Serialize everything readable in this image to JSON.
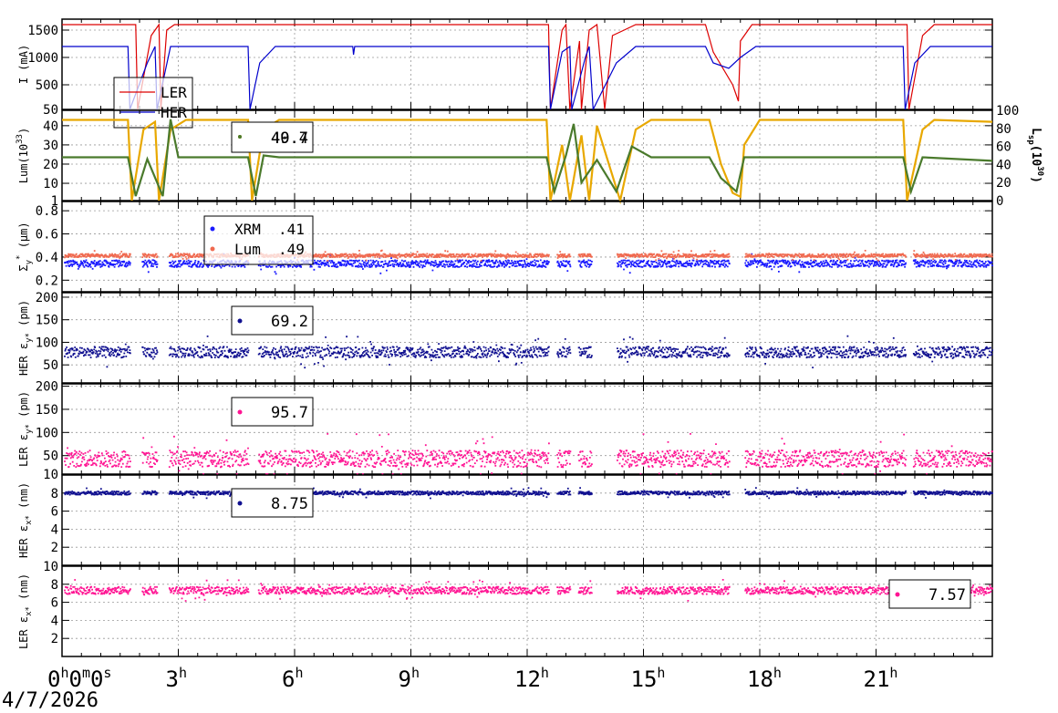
{
  "date": "4/7/2026",
  "x_axis": {
    "range_hours": [
      0,
      24
    ],
    "tick_hours": [
      0,
      3,
      6,
      9,
      12,
      15,
      18,
      21
    ],
    "tick_labels": [
      {
        "base": "0",
        "sup": "h",
        "rest": "0",
        "sup2": "m",
        "rest2": "0",
        "sup3": "s"
      },
      {
        "base": "3",
        "sup": "h"
      },
      {
        "base": "6",
        "sup": "h"
      },
      {
        "base": "9",
        "sup": "h"
      },
      {
        "base": "12",
        "sup": "h"
      },
      {
        "base": "15",
        "sup": "h"
      },
      {
        "base": "18",
        "sup": "h"
      },
      {
        "base": "21",
        "sup": "h"
      }
    ]
  },
  "colors": {
    "ler_current": "#dd0000",
    "her_current": "#0000cc",
    "lum": "#e8a800",
    "lsp": "#4a7a2c",
    "xrm": "#1a1aff",
    "lum_sigma": "#f06a50",
    "her_emit": "#101090",
    "ler_emit": "#ff1493"
  },
  "chart_data": [
    {
      "type": "line",
      "ylabel": "I (mA)",
      "yticks": [
        "500",
        "1000",
        "1500"
      ],
      "ylim": [
        50,
        1700
      ],
      "bottom_tick": "50",
      "legend": [
        {
          "name": "LER",
          "color": "#dd0000"
        },
        {
          "name": "HER",
          "color": "#0000cc"
        }
      ],
      "series": [
        {
          "name": "LER",
          "points": [
            [
              0,
              1600
            ],
            [
              1.9,
              1600
            ],
            [
              1.95,
              50
            ],
            [
              2.3,
              1400
            ],
            [
              2.5,
              1600
            ],
            [
              2.55,
              50
            ],
            [
              2.7,
              1500
            ],
            [
              2.9,
              1600
            ],
            [
              12.55,
              1600
            ],
            [
              12.6,
              50
            ],
            [
              12.9,
              1500
            ],
            [
              13.0,
              1600
            ],
            [
              13.1,
              50
            ],
            [
              13.35,
              1300
            ],
            [
              13.4,
              50
            ],
            [
              13.6,
              1500
            ],
            [
              13.8,
              1600
            ],
            [
              14.0,
              50
            ],
            [
              14.2,
              1400
            ],
            [
              14.5,
              1500
            ],
            [
              14.8,
              1600
            ],
            [
              16.6,
              1600
            ],
            [
              16.8,
              1100
            ],
            [
              17.3,
              500
            ],
            [
              17.45,
              200
            ],
            [
              17.5,
              1300
            ],
            [
              17.8,
              1600
            ],
            [
              21.8,
              1600
            ],
            [
              21.85,
              50
            ],
            [
              22.2,
              1400
            ],
            [
              22.5,
              1600
            ],
            [
              24,
              1600
            ]
          ]
        },
        {
          "name": "HER",
          "points": [
            [
              0,
              1200
            ],
            [
              1.7,
              1200
            ],
            [
              1.75,
              50
            ],
            [
              2.2,
              900
            ],
            [
              2.4,
              1200
            ],
            [
              2.45,
              50
            ],
            [
              2.8,
              1200
            ],
            [
              4.8,
              1200
            ],
            [
              4.85,
              50
            ],
            [
              5.1,
              900
            ],
            [
              5.5,
              1200
            ],
            [
              7.5,
              1200
            ],
            [
              7.52,
              1050
            ],
            [
              7.55,
              1200
            ],
            [
              12.55,
              1200
            ],
            [
              12.6,
              50
            ],
            [
              12.9,
              1100
            ],
            [
              13.1,
              1200
            ],
            [
              13.15,
              50
            ],
            [
              13.5,
              1000
            ],
            [
              13.6,
              1200
            ],
            [
              13.7,
              50
            ],
            [
              14.3,
              900
            ],
            [
              14.8,
              1200
            ],
            [
              16.6,
              1200
            ],
            [
              16.8,
              900
            ],
            [
              17.2,
              800
            ],
            [
              17.5,
              1000
            ],
            [
              17.9,
              1200
            ],
            [
              21.7,
              1200
            ],
            [
              21.75,
              50
            ],
            [
              22.0,
              900
            ],
            [
              22.4,
              1200
            ],
            [
              24,
              1200
            ]
          ]
        }
      ]
    },
    {
      "type": "line",
      "ylabel": "Lum(10",
      "ylabel_sup": "33",
      "ylabel_end": ")",
      "yticks": [
        "1",
        "10",
        "20",
        "30",
        "40"
      ],
      "ylim": [
        1,
        48
      ],
      "y2label": "L",
      "y2label_sub": "sp",
      "y2label_mid": "(10",
      "y2label_sup": "30",
      "y2label_end": ")",
      "y2ticks": [
        "0",
        "20",
        "40",
        "60",
        "80",
        "100"
      ],
      "y2lim": [
        0,
        100
      ],
      "legend_values": [
        "40.7",
        "49.4"
      ],
      "series": [
        {
          "name": "Lum",
          "axis": "left",
          "points": [
            [
              0,
              43
            ],
            [
              1.7,
              43
            ],
            [
              1.8,
              1
            ],
            [
              2.1,
              38
            ],
            [
              2.4,
              42
            ],
            [
              2.5,
              1
            ],
            [
              2.8,
              38
            ],
            [
              3.2,
              43
            ],
            [
              4.8,
              43
            ],
            [
              4.9,
              1
            ],
            [
              5.2,
              38
            ],
            [
              5.6,
              43
            ],
            [
              12.5,
              43
            ],
            [
              12.6,
              1
            ],
            [
              12.9,
              30
            ],
            [
              13.1,
              1
            ],
            [
              13.4,
              35
            ],
            [
              13.6,
              1
            ],
            [
              13.8,
              40
            ],
            [
              14.4,
              1
            ],
            [
              14.8,
              38
            ],
            [
              15.2,
              43
            ],
            [
              16.7,
              43
            ],
            [
              17.0,
              20
            ],
            [
              17.3,
              5
            ],
            [
              17.5,
              3
            ],
            [
              17.6,
              30
            ],
            [
              18.0,
              43
            ],
            [
              21.7,
              43
            ],
            [
              21.8,
              1
            ],
            [
              22.2,
              38
            ],
            [
              22.5,
              43
            ],
            [
              24,
              42
            ]
          ]
        },
        {
          "name": "Lsp",
          "axis": "right",
          "points": [
            [
              0,
              48
            ],
            [
              1.7,
              48
            ],
            [
              1.9,
              5
            ],
            [
              2.2,
              46
            ],
            [
              2.6,
              5
            ],
            [
              2.8,
              90
            ],
            [
              3.0,
              48
            ],
            [
              4.8,
              48
            ],
            [
              5.0,
              5
            ],
            [
              5.2,
              50
            ],
            [
              5.6,
              48
            ],
            [
              12.5,
              48
            ],
            [
              12.7,
              10
            ],
            [
              13.0,
              50
            ],
            [
              13.2,
              85
            ],
            [
              13.4,
              20
            ],
            [
              13.8,
              45
            ],
            [
              14.3,
              10
            ],
            [
              14.7,
              60
            ],
            [
              15.2,
              48
            ],
            [
              16.7,
              48
            ],
            [
              17.0,
              25
            ],
            [
              17.4,
              10
            ],
            [
              17.6,
              48
            ],
            [
              21.7,
              48
            ],
            [
              21.9,
              10
            ],
            [
              22.2,
              48
            ],
            [
              24,
              44
            ]
          ]
        }
      ]
    },
    {
      "type": "scatter",
      "ylabel": "Σ",
      "ylabel_sub": "y",
      "ylabel_sup": "*",
      "ylabel_end": " (μm)",
      "yticks": [
        "0.2",
        "0.4",
        "0.6",
        "0.8"
      ],
      "ylim": [
        0.1,
        0.88
      ],
      "legend": [
        {
          "name": "XRM",
          "value": ".41",
          "color": "#1a1aff"
        },
        {
          "name": "Lum",
          "value": ".49",
          "color": "#f06a50"
        }
      ],
      "series": [
        {
          "name": "XRM",
          "level": 0.35,
          "noise": 0.03
        },
        {
          "name": "Lum",
          "level": 0.42,
          "noise": 0.015
        }
      ]
    },
    {
      "type": "scatter",
      "ylabel": "HER ε",
      "ylabel_sub": "y*",
      "ylabel_end": " (pm)",
      "yticks": [
        "50",
        "100",
        "150",
        "200"
      ],
      "ylim": [
        10,
        210
      ],
      "legend_value": "69.2",
      "series": [
        {
          "name": "HER εy*",
          "level": 80,
          "noise": 12
        }
      ]
    },
    {
      "type": "scatter",
      "ylabel": "LER ε",
      "ylabel_sub": "y*",
      "ylabel_end": " (pm)",
      "yticks": [
        "10",
        "50",
        "100",
        "150",
        "200"
      ],
      "ylim": [
        10,
        205
      ],
      "legend_value": "95.7",
      "series": [
        {
          "name": "LER εy*",
          "level": 45,
          "noise": 18
        }
      ]
    },
    {
      "type": "scatter",
      "ylabel": "HER ε",
      "ylabel_sub": "x*",
      "ylabel_end": " (nm)",
      "yticks": [
        "2",
        "4",
        "6",
        "8"
      ],
      "ylim": [
        0,
        10
      ],
      "legend_value": "8.75",
      "series": [
        {
          "name": "HER εx*",
          "level": 8.1,
          "noise": 0.2
        }
      ]
    },
    {
      "type": "scatter",
      "ylabel": "LER ε",
      "ylabel_sub": "x*",
      "ylabel_end": " (nm)",
      "yticks": [
        "2",
        "4",
        "6",
        "8",
        "10"
      ],
      "ylim": [
        0,
        10
      ],
      "legend_value": "7.57",
      "series": [
        {
          "name": "LER εx*",
          "level": 7.4,
          "noise": 0.4
        }
      ]
    }
  ]
}
